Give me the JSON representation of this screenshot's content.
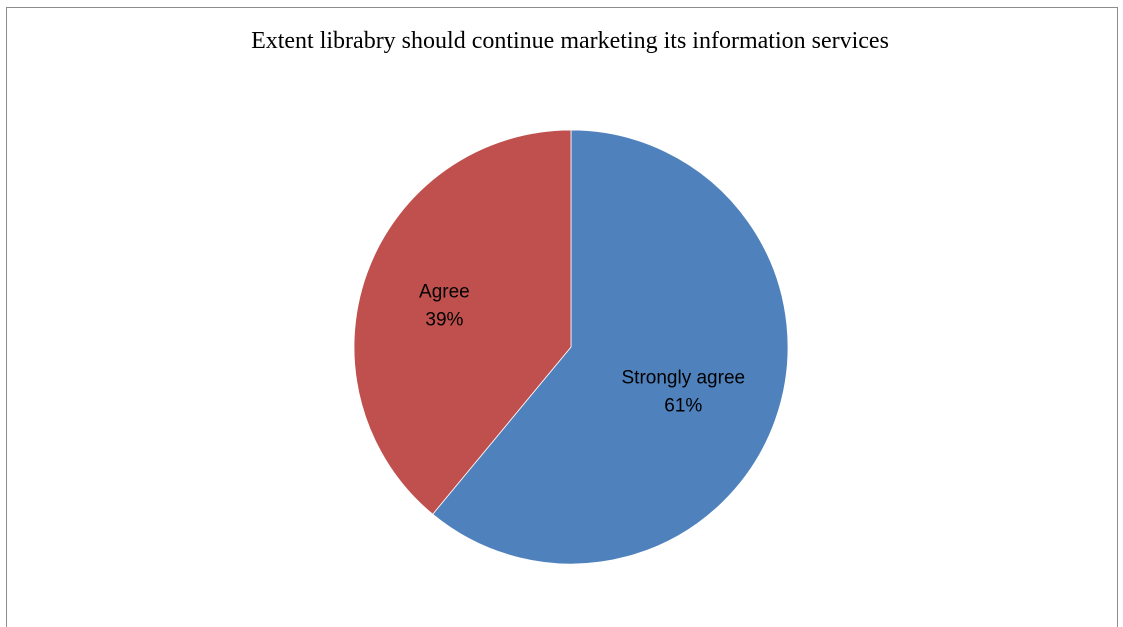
{
  "chart_data": {
    "type": "pie",
    "title": "Extent librabry should continue marketing its information services",
    "slices": [
      {
        "label": "Strongly agree",
        "value": 61,
        "display": "61%",
        "color": "#4F81BD"
      },
      {
        "label": "Agree",
        "value": 39,
        "display": "39%",
        "color": "#C0504D"
      }
    ],
    "start_angle_deg": 0,
    "direction": "clockwise",
    "legend": "none",
    "data_labels": "inside"
  }
}
